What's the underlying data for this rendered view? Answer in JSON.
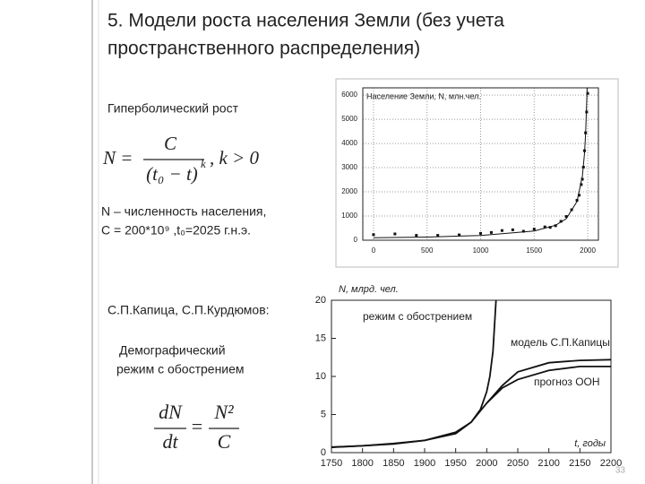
{
  "slide": {
    "title_line1": "5. Модели роста населения Земли (без учета",
    "title_line2": "пространственного  распределения)",
    "hyper_label": "Гиперболический рост",
    "formula1": {
      "lhs": "N =",
      "num": "C",
      "den": "(t₀ − t)",
      "exp": "k",
      "cond": ", k > 0"
    },
    "def1": "N – численность населения,",
    "def2": "C = 200*10⁹ ,t₀=2025  г.н.э.",
    "authors": "С.П.Капица, С.П.Курдюмов:",
    "regime1": "Демографический",
    "regime2": "режим с обострением",
    "formula2": {
      "lhs_num": "dN",
      "lhs_den": "dt",
      "eq": "=",
      "rhs_num": "N²",
      "rhs_den": "C"
    },
    "page_number": "33"
  },
  "chart_data": [
    {
      "type": "scatter",
      "title": "Население Земли, N, млн.чел.",
      "x": [
        0,
        200,
        400,
        600,
        800,
        1000,
        1100,
        1200,
        1300,
        1400,
        1500,
        1600,
        1650,
        1700,
        1750,
        1800,
        1850,
        1900,
        1920,
        1940,
        1950,
        1960,
        1970,
        1980,
        1990,
        2000
      ],
      "values": [
        230,
        260,
        200,
        200,
        220,
        280,
        320,
        400,
        430,
        370,
        460,
        550,
        530,
        600,
        780,
        980,
        1260,
        1650,
        1860,
        2300,
        2520,
        3020,
        3700,
        4440,
        5300,
        6070
      ],
      "curve": {
        "x": [
          0,
          500,
          1000,
          1500,
          1700,
          1800,
          1900,
          1950,
          1970,
          1980,
          1990,
          1995
        ],
        "values": [
          100,
          130,
          195,
          380,
          620,
          890,
          1600,
          2650,
          3600,
          4400,
          5700,
          6300
        ]
      },
      "color": "#111111",
      "xlim": [
        -100,
        2100
      ],
      "ylim": [
        0,
        6300
      ],
      "xticks": [
        0,
        500,
        1000,
        1500,
        2000
      ],
      "yticks": [
        0,
        1000,
        2000,
        3000,
        4000,
        5000,
        6000
      ],
      "grid": true
    },
    {
      "type": "line",
      "ylabel": "N, млрд. чел.",
      "xlabel": "t, годы",
      "series": [
        {
          "name": "режим с обострением",
          "color": "#111111",
          "x": [
            1750,
            1800,
            1850,
            1900,
            1950,
            1975,
            1990,
            2000,
            2005,
            2010,
            2015
          ],
          "values": [
            0.73,
            0.89,
            1.14,
            1.6,
            2.67,
            4,
            5.7,
            8,
            10,
            13.3,
            20
          ]
        },
        {
          "name": "модель С.П.Капицы",
          "color": "#111111",
          "x": [
            1750,
            1800,
            1850,
            1900,
            1950,
            1975,
            2000,
            2025,
            2050,
            2100,
            2150,
            2200
          ],
          "values": [
            0.7,
            0.9,
            1.2,
            1.6,
            2.5,
            4,
            6.5,
            8.8,
            10.6,
            11.8,
            12.1,
            12.2
          ]
        },
        {
          "name": "прогноз ООН",
          "color": "#111111",
          "x": [
            2000,
            2025,
            2050,
            2100,
            2150,
            2200
          ],
          "values": [
            6.5,
            8.5,
            9.6,
            10.8,
            11.3,
            11.3
          ]
        }
      ],
      "xlim": [
        1750,
        2200
      ],
      "ylim": [
        0,
        20
      ],
      "xticks": [
        1750,
        1800,
        1850,
        1900,
        1950,
        2000,
        2050,
        2100,
        2150,
        2200
      ],
      "yticks": [
        0,
        5,
        10,
        15,
        20
      ],
      "grid": false
    }
  ]
}
